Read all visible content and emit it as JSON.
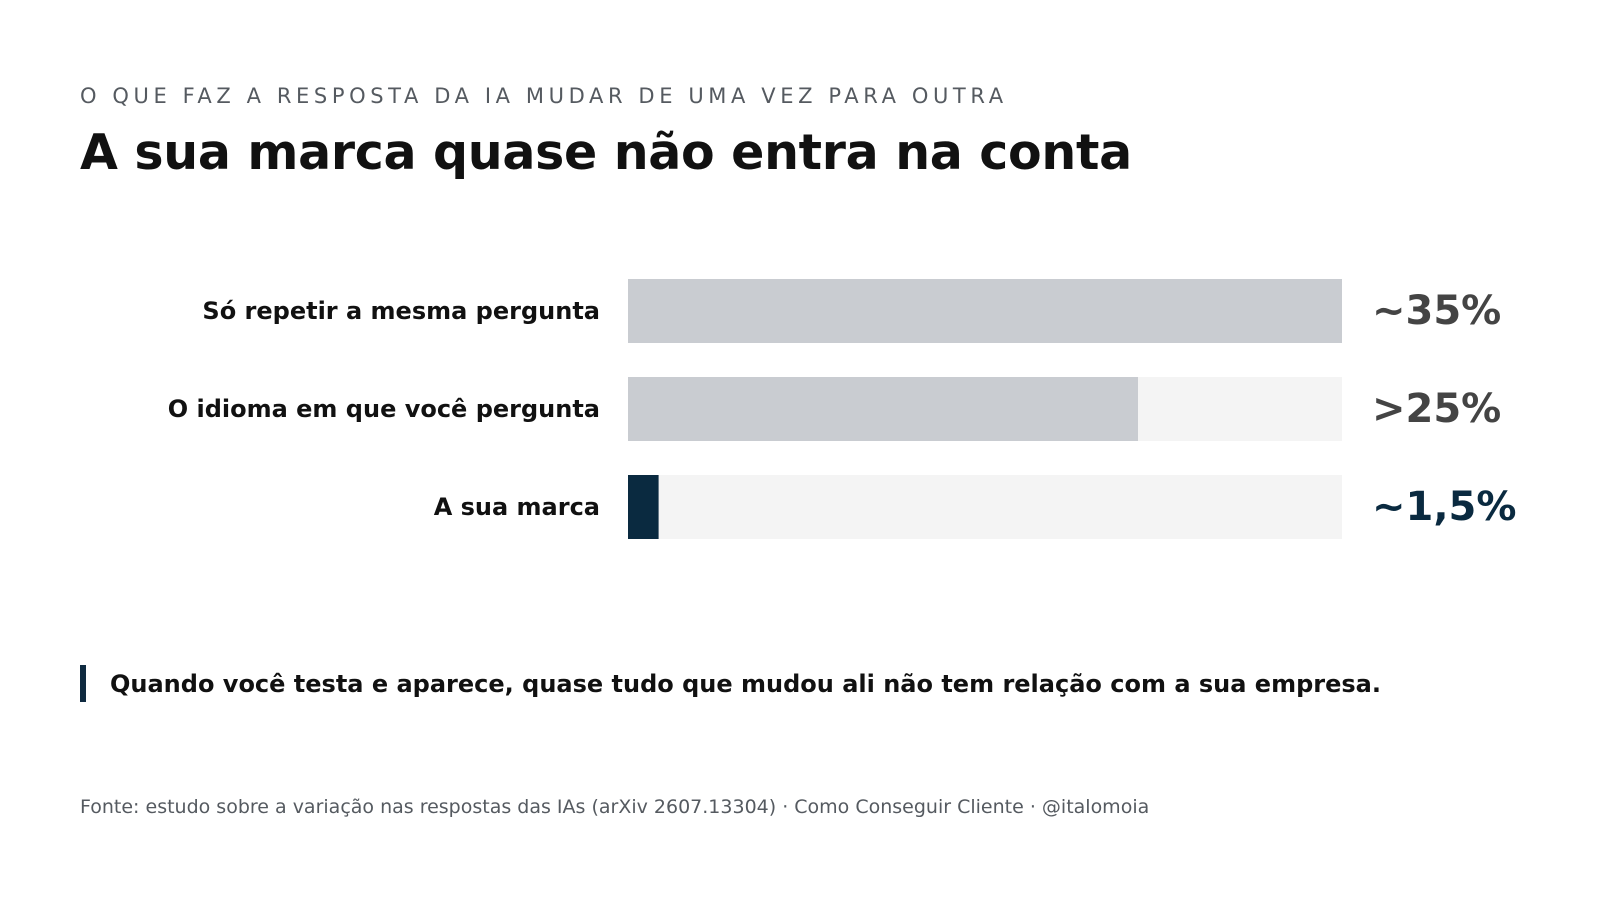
{
  "eyebrow": "O QUE FAZ A RESPOSTA DA IA MUDAR DE UMA VEZ PARA OUTRA",
  "title": "A sua marca quase não entra na conta",
  "chart_data": {
    "type": "bar",
    "orientation": "horizontal",
    "categories": [
      "Só repetir a mesma pergunta",
      "O idioma em que você pergunta",
      "A sua marca"
    ],
    "values": [
      35,
      25,
      1.5
    ],
    "value_labels": [
      "~35%",
      ">25%",
      "~1,5%"
    ],
    "xlim": [
      0,
      35
    ],
    "grid": false,
    "legend": "none",
    "colors": {
      "bars": [
        "#c9ccd1",
        "#c9ccd1",
        "#0a2a40"
      ],
      "track": "#f4f4f4",
      "value_labels": [
        "#444444",
        "#444444",
        "#0a2a40"
      ]
    }
  },
  "callout": "Quando você testa e aparece, quase tudo que mudou ali não tem relação com a sua empresa.",
  "footer": "Fonte: estudo sobre a variação nas respostas das IAs (arXiv 2607.13304) · Como Conseguir Cliente · @italomoia"
}
